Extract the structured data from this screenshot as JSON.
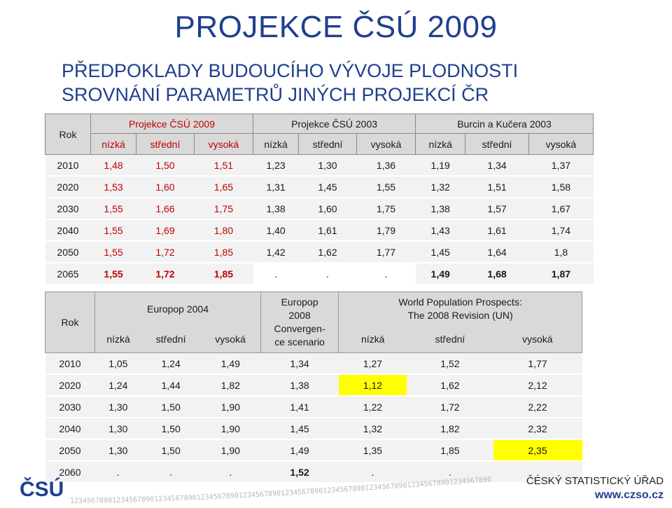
{
  "header": {
    "title": "PROJEKCE ČSÚ 2009",
    "subtitle_line1": "PŘEDPOKLADY BUDOUCÍHO VÝVOJE PLODNOSTI",
    "subtitle_line2": "SROVNÁNÍ PARAMETRŮ JINÝCH PROJEKCÍ ČR"
  },
  "table1": {
    "rok": "Rok",
    "groups": [
      "Projekce ČSÚ 2009",
      "Projekce ČSÚ 2003",
      "Burcin a Kučera 2003"
    ],
    "variants": [
      "nízká",
      "střední",
      "vysoká",
      "nízká",
      "střední",
      "vysoká",
      "nízká",
      "střední",
      "vysoká"
    ],
    "rows": [
      {
        "year": "2010",
        "v": [
          "1,48",
          "1,50",
          "1,51",
          "1,23",
          "1,30",
          "1,36",
          "1,19",
          "1,34",
          "1,37"
        ]
      },
      {
        "year": "2020",
        "v": [
          "1,53",
          "1,60",
          "1,65",
          "1,31",
          "1,45",
          "1,55",
          "1,32",
          "1,51",
          "1,58"
        ]
      },
      {
        "year": "2030",
        "v": [
          "1,55",
          "1,66",
          "1,75",
          "1,38",
          "1,60",
          "1,75",
          "1,38",
          "1,57",
          "1,67"
        ]
      },
      {
        "year": "2040",
        "v": [
          "1,55",
          "1,69",
          "1,80",
          "1,40",
          "1,61",
          "1,79",
          "1,43",
          "1,61",
          "1,74"
        ]
      },
      {
        "year": "2050",
        "v": [
          "1,55",
          "1,72",
          "1,85",
          "1,42",
          "1,62",
          "1,77",
          "1,45",
          "1,64",
          "1,8"
        ]
      },
      {
        "year": "2065",
        "v": [
          "1,55",
          "1,72",
          "1,85",
          ".",
          ".",
          ".",
          "1,49",
          "1,68",
          "1,87"
        ]
      }
    ]
  },
  "table2": {
    "rok": "Rok",
    "europop2004": "Europop 2004",
    "europop2008": [
      "Europop",
      "2008",
      "Convergen-",
      "ce scenario"
    ],
    "wpp": [
      "World Population Prospects:",
      "The 2008 Revision (UN)"
    ],
    "variants": [
      "nízká",
      "střední",
      "vysoká",
      "nízká",
      "střední",
      "vysoká"
    ],
    "rows": [
      {
        "year": "2010",
        "v": [
          "1,05",
          "1,24",
          "1,49",
          "1,34",
          "1,27",
          "1,52",
          "1,77"
        ]
      },
      {
        "year": "2020",
        "v": [
          "1,24",
          "1,44",
          "1,82",
          "1,38",
          "1,12",
          "1,62",
          "2,12"
        ]
      },
      {
        "year": "2030",
        "v": [
          "1,30",
          "1,50",
          "1,90",
          "1,41",
          "1,22",
          "1,72",
          "2,22"
        ]
      },
      {
        "year": "2040",
        "v": [
          "1,30",
          "1,50",
          "1,90",
          "1,45",
          "1,32",
          "1,82",
          "2,32"
        ]
      },
      {
        "year": "2050",
        "v": [
          "1,30",
          "1,50",
          "1,90",
          "1,49",
          "1,35",
          "1,85",
          "2,35"
        ]
      },
      {
        "year": "2060",
        "v": [
          ".",
          ".",
          ".",
          "1,52",
          ".",
          ".",
          "."
        ]
      }
    ]
  },
  "footer": {
    "logo": "ČSÚ",
    "office": "ČESKÝ STATISTICKÝ ÚŘAD",
    "web": "www.czso.cz",
    "digits": "1234567890123456789012345678901234567890123456789012345678901234567890123456789012345678901234567890"
  },
  "colors": {
    "title": "#1f3f8f",
    "red": "#c00000",
    "highlight": "#ffff00",
    "header_bg": "#d9d9d9"
  }
}
